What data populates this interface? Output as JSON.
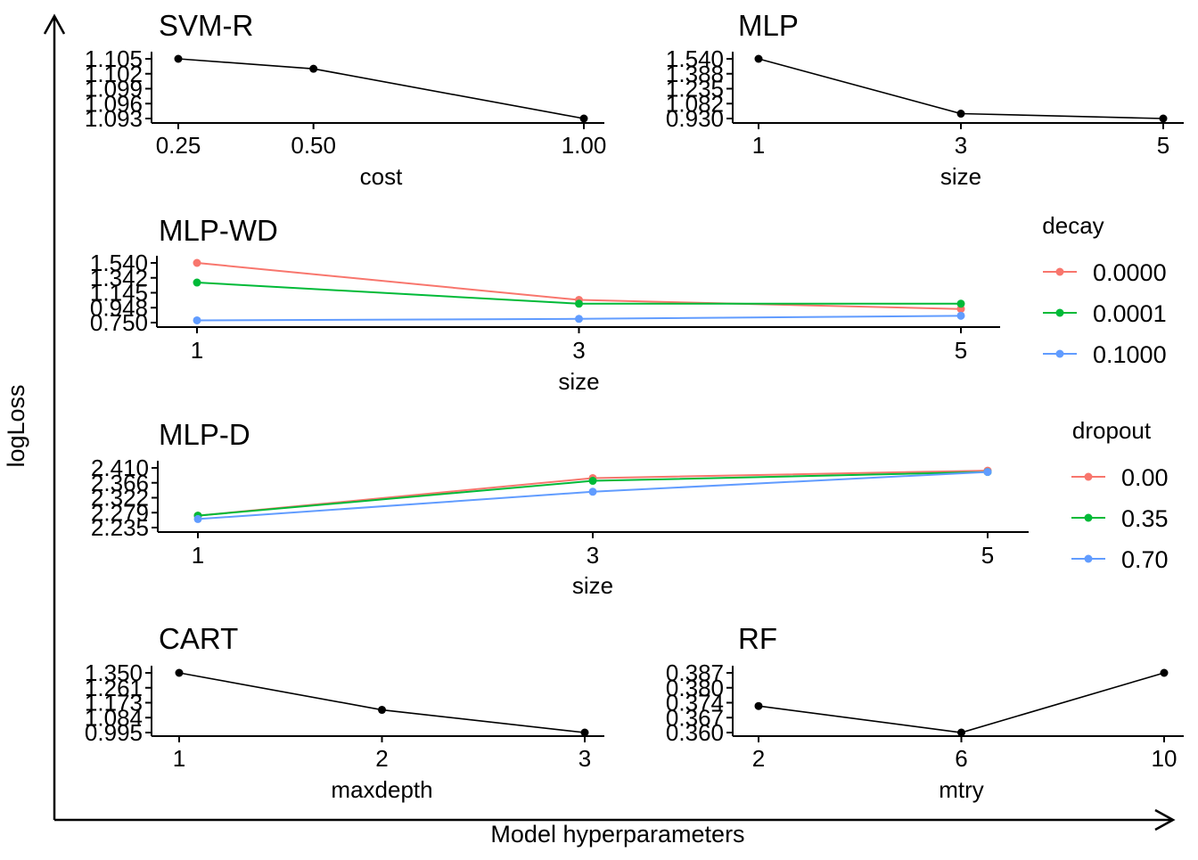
{
  "figure": {
    "xlabel": "Model hyperparameters",
    "ylabel": "logLoss"
  },
  "colors": {
    "axis": "#000000",
    "single_series": "#000000",
    "red": "#F8766D",
    "green": "#00BA38",
    "blue": "#619CFF"
  },
  "chart_data": [
    {
      "type": "line",
      "title": "SVM-R",
      "xlabel": "cost",
      "ylabel": "",
      "x": [
        0.25,
        0.5,
        1.0
      ],
      "x_ticks": [
        "0.25",
        "0.50",
        "1.00"
      ],
      "y_ticks": [
        "1.093",
        "1.096",
        "1.099",
        "1.102",
        "1.105"
      ],
      "ylim": [
        1.093,
        1.105
      ],
      "xlim": [
        0.25,
        1.0
      ],
      "series": [
        {
          "values": [
            1.105,
            1.103,
            1.093
          ]
        }
      ]
    },
    {
      "type": "line",
      "title": "MLP",
      "xlabel": "size",
      "ylabel": "",
      "x": [
        1,
        3,
        5
      ],
      "x_ticks": [
        "1",
        "3",
        "5"
      ],
      "y_ticks": [
        "0.930",
        "1.082",
        "1.235",
        "1.388",
        "1.540"
      ],
      "ylim": [
        0.93,
        1.54
      ],
      "xlim": [
        1,
        5
      ],
      "series": [
        {
          "values": [
            1.54,
            0.98,
            0.93
          ]
        }
      ]
    },
    {
      "type": "line",
      "title": "MLP-WD",
      "xlabel": "size",
      "ylabel": "",
      "legend_title": "decay",
      "x": [
        1,
        3,
        5
      ],
      "x_ticks": [
        "1",
        "3",
        "5"
      ],
      "y_ticks": [
        "0.750",
        "0.948",
        "1.145",
        "1.342",
        "1.540"
      ],
      "ylim": [
        0.75,
        1.54
      ],
      "xlim": [
        1,
        5
      ],
      "series": [
        {
          "name": "0.0000",
          "color": "#F8766D",
          "values": [
            1.54,
            1.05,
            0.93
          ]
        },
        {
          "name": "0.0001",
          "color": "#00BA38",
          "values": [
            1.28,
            1.0,
            1.0
          ]
        },
        {
          "name": "0.1000",
          "color": "#619CFF",
          "values": [
            0.78,
            0.8,
            0.84
          ]
        }
      ]
    },
    {
      "type": "line",
      "title": "MLP-D",
      "xlabel": "size",
      "ylabel": "",
      "legend_title": "dropout",
      "x": [
        1,
        3,
        5
      ],
      "x_ticks": [
        "1",
        "3",
        "5"
      ],
      "y_ticks": [
        "2.235",
        "2.279",
        "2.322",
        "2.366",
        "2.410"
      ],
      "ylim": [
        2.235,
        2.41
      ],
      "xlim": [
        1,
        5
      ],
      "series": [
        {
          "name": "0.00",
          "color": "#F8766D",
          "values": [
            2.27,
            2.38,
            2.402
          ]
        },
        {
          "name": "0.35",
          "color": "#00BA38",
          "values": [
            2.27,
            2.372,
            2.398
          ]
        },
        {
          "name": "0.70",
          "color": "#619CFF",
          "values": [
            2.26,
            2.34,
            2.398
          ]
        }
      ]
    },
    {
      "type": "line",
      "title": "CART",
      "xlabel": "maxdepth",
      "ylabel": "",
      "x": [
        1,
        2,
        3
      ],
      "x_ticks": [
        "1",
        "2",
        "3"
      ],
      "y_ticks": [
        "0.995",
        "1.084",
        "1.173",
        "1.261",
        "1.350"
      ],
      "ylim": [
        0.995,
        1.35
      ],
      "xlim": [
        1,
        3
      ],
      "series": [
        {
          "values": [
            1.35,
            1.13,
            0.995
          ]
        }
      ]
    },
    {
      "type": "line",
      "title": "RF",
      "xlabel": "mtry",
      "ylabel": "",
      "x": [
        2,
        6,
        10
      ],
      "x_ticks": [
        "2",
        "6",
        "10"
      ],
      "y_ticks": [
        "0.360",
        "0.367",
        "0.374",
        "0.380",
        "0.387"
      ],
      "ylim": [
        0.36,
        0.387
      ],
      "xlim": [
        2,
        10
      ],
      "series": [
        {
          "values": [
            0.372,
            0.36,
            0.387
          ]
        }
      ]
    }
  ]
}
